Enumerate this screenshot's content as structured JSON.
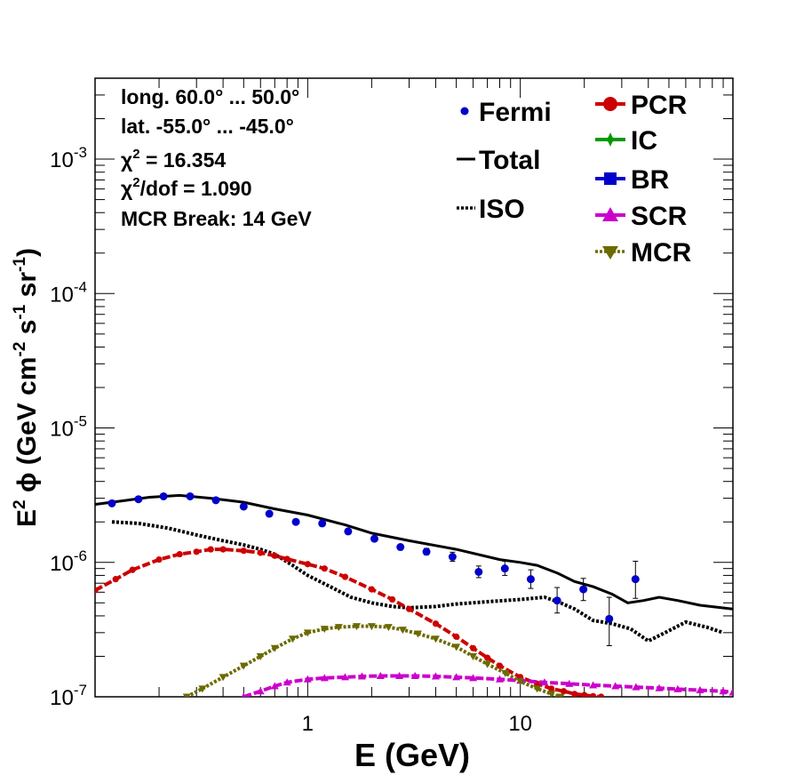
{
  "chart_data": {
    "type": "line",
    "xlabel": "E (GeV)",
    "ylabel": "E",
    "ylabel_sup": "2",
    "ylabel_rest": " ϕ (GeV cm",
    "ylabel_sup2": "-2",
    "ylabel_s": " s",
    "ylabel_sup3": "-1",
    "ylabel_sr": " sr",
    "ylabel_sup4": "-1",
    "ylabel_close": ")",
    "xscale": "log",
    "yscale": "log",
    "xlim": [
      0.1,
      100
    ],
    "ylim": [
      1e-07,
      0.004
    ],
    "x_ticks": [
      {
        "value": 1,
        "label": "1"
      },
      {
        "value": 10,
        "label": "10"
      }
    ],
    "y_ticks": [
      {
        "value": 1e-07,
        "base": "10",
        "exp": "-7"
      },
      {
        "value": 1e-06,
        "base": "10",
        "exp": "-6"
      },
      {
        "value": 1e-05,
        "base": "10",
        "exp": "-5"
      },
      {
        "value": 0.0001,
        "base": "10",
        "exp": "-4"
      },
      {
        "value": 0.001,
        "base": "10",
        "exp": "-3"
      }
    ],
    "annotations": {
      "long": "long. 60.0° ... 50.0°",
      "lat": "lat. -55.0° ... -45.0°",
      "chi2_sym": "χ",
      "chi2_sup": "2",
      "chi2_val": " = 16.354",
      "chidof_sym": "χ",
      "chidof_sup": "2",
      "chidof_val": "/dof = 1.090",
      "break": "MCR Break: 14 GeV"
    },
    "legend_placement": "top-right",
    "fermi": {
      "name": "Fermi",
      "color": "#0000cc",
      "points": [
        {
          "x": 0.12,
          "y": 2.75e-06,
          "err": [
            2.7e-06,
            2.8e-06
          ]
        },
        {
          "x": 0.16,
          "y": 2.95e-06,
          "err": [
            2.9e-06,
            3e-06
          ]
        },
        {
          "x": 0.21,
          "y": 3.1e-06,
          "err": [
            3.05e-06,
            3.15e-06
          ]
        },
        {
          "x": 0.28,
          "y": 3.1e-06,
          "err": [
            3.05e-06,
            3.15e-06
          ]
        },
        {
          "x": 0.37,
          "y": 2.9e-06,
          "err": [
            2.85e-06,
            2.95e-06
          ]
        },
        {
          "x": 0.5,
          "y": 2.6e-06,
          "err": [
            2.55e-06,
            2.65e-06
          ]
        },
        {
          "x": 0.66,
          "y": 2.3e-06,
          "err": [
            2.25e-06,
            2.35e-06
          ]
        },
        {
          "x": 0.88,
          "y": 2e-06,
          "err": [
            1.96e-06,
            2.04e-06
          ]
        },
        {
          "x": 1.17,
          "y": 1.95e-06,
          "err": [
            1.9e-06,
            2e-06
          ]
        },
        {
          "x": 1.55,
          "y": 1.7e-06,
          "err": [
            1.65e-06,
            1.75e-06
          ]
        },
        {
          "x": 2.06,
          "y": 1.5e-06,
          "err": [
            1.45e-06,
            1.55e-06
          ]
        },
        {
          "x": 2.73,
          "y": 1.3e-06,
          "err": [
            1.25e-06,
            1.35e-06
          ]
        },
        {
          "x": 3.62,
          "y": 1.2e-06,
          "err": [
            1.14e-06,
            1.27e-06
          ]
        },
        {
          "x": 4.8,
          "y": 1.1e-06,
          "err": [
            1.02e-06,
            1.19e-06
          ]
        },
        {
          "x": 6.37,
          "y": 8.5e-07,
          "err": [
            7.7e-07,
            9.4e-07
          ]
        },
        {
          "x": 8.46,
          "y": 9e-07,
          "err": [
            8e-07,
            1.02e-06
          ]
        },
        {
          "x": 11.2,
          "y": 7.5e-07,
          "err": [
            6.4e-07,
            8.8e-07
          ]
        },
        {
          "x": 14.9,
          "y": 5.2e-07,
          "err": [
            4.2e-07,
            6.5e-07
          ]
        },
        {
          "x": 19.8,
          "y": 6.3e-07,
          "err": [
            5.2e-07,
            7.6e-07
          ]
        },
        {
          "x": 26.2,
          "y": 3.8e-07,
          "err": [
            2.4e-07,
            5.5e-07
          ]
        },
        {
          "x": 34.8,
          "y": 7.5e-07,
          "err": [
            5.4e-07,
            1.02e-06
          ]
        }
      ]
    },
    "series": [
      {
        "name": "Total",
        "color": "#000000",
        "style": "solid",
        "x": [
          0.1,
          0.13,
          0.18,
          0.25,
          0.35,
          0.5,
          0.7,
          1.0,
          1.5,
          2.0,
          3.0,
          5.0,
          8.0,
          10.0,
          12.0,
          15.0,
          18.0,
          22.0,
          27.0,
          32.0,
          38.0,
          45.0,
          55.0,
          70.0,
          100.0
        ],
        "y": [
          2.7e-06,
          2.85e-06,
          3.05e-06,
          3.15e-06,
          3e-06,
          2.8e-06,
          2.5e-06,
          2.25e-06,
          1.9e-06,
          1.65e-06,
          1.45e-06,
          1.25e-06,
          1.05e-06,
          1e-06,
          9.5e-07,
          8.3e-07,
          7.2e-07,
          6.6e-07,
          5.8e-07,
          5e-07,
          5.2e-07,
          5.5e-07,
          5.2e-07,
          4.8e-07,
          4.5e-07
        ]
      },
      {
        "name": "ISO",
        "color": "#000000",
        "style": "dotted",
        "x": [
          0.12,
          0.16,
          0.22,
          0.3,
          0.4,
          0.5,
          0.6,
          0.7,
          0.85,
          1.0,
          1.3,
          1.6,
          2.0,
          2.5,
          3.0,
          4.0,
          5.0,
          7.0,
          10.0,
          13.0,
          15.0,
          18.0,
          22.0,
          27.0,
          33.0,
          40.0,
          48.0,
          60.0,
          75.0,
          90.0
        ],
        "y": [
          2e-06,
          1.95e-06,
          1.8e-06,
          1.6e-06,
          1.45e-06,
          1.35e-06,
          1.25e-06,
          1.15e-06,
          9.5e-07,
          8e-07,
          6.5e-07,
          5.5e-07,
          5e-07,
          4.7e-07,
          4.6e-07,
          4.7e-07,
          4.9e-07,
          5.1e-07,
          5.3e-07,
          5.5e-07,
          5.1e-07,
          4.5e-07,
          3.7e-07,
          3.5e-07,
          3.2e-07,
          2.6e-07,
          3e-07,
          3.6e-07,
          3.3e-07,
          3e-07
        ]
      },
      {
        "name": "PCR",
        "color": "#cc0000",
        "style": "dashed",
        "marker": "circle",
        "x": [
          0.1,
          0.125,
          0.15,
          0.2,
          0.25,
          0.3,
          0.35,
          0.4,
          0.5,
          0.6,
          0.7,
          0.8,
          1.0,
          1.2,
          1.5,
          2.0,
          2.5,
          3.0,
          4.0,
          5.0,
          6.0,
          7.0,
          8.0,
          10.0,
          12.0,
          14.0,
          16.0,
          18.0,
          20.0,
          22.0,
          24.0
        ],
        "y": [
          6.2e-07,
          7.5e-07,
          8.8e-07,
          1.05e-06,
          1.15e-06,
          1.2e-06,
          1.25e-06,
          1.25e-06,
          1.22e-06,
          1.18e-06,
          1.12e-06,
          1.06e-06,
          9.7e-07,
          9e-07,
          7.8e-07,
          6.3e-07,
          5.3e-07,
          4.5e-07,
          3.5e-07,
          2.8e-07,
          2.3e-07,
          1.95e-07,
          1.7e-07,
          1.4e-07,
          1.25e-07,
          1.15e-07,
          1.1e-07,
          1.05e-07,
          1.03e-07,
          1.01e-07,
          1e-07
        ]
      },
      {
        "name": "IC",
        "color": "#009900",
        "style": "solid",
        "marker": "star",
        "x": [],
        "y": []
      },
      {
        "name": "BR",
        "color": "#0000cc",
        "style": "solid",
        "marker": "square",
        "x": [],
        "y": []
      },
      {
        "name": "SCR",
        "color": "#cc00cc",
        "style": "dashed",
        "marker": "triangle-up",
        "x": [
          0.5,
          0.6,
          0.7,
          0.8,
          1.0,
          1.2,
          1.5,
          1.8,
          2.2,
          2.7,
          3.2,
          4.0,
          5.0,
          6.0,
          8.0,
          10.0,
          13.0,
          17.0,
          22.0,
          28.0,
          35.0,
          45.0,
          55.0,
          70.0,
          90.0,
          100.0
        ],
        "y": [
          1e-07,
          1.1e-07,
          1.2e-07,
          1.28e-07,
          1.35e-07,
          1.38e-07,
          1.4e-07,
          1.42e-07,
          1.43e-07,
          1.43e-07,
          1.43e-07,
          1.42e-07,
          1.4e-07,
          1.38e-07,
          1.35e-07,
          1.32e-07,
          1.28e-07,
          1.25e-07,
          1.22e-07,
          1.2e-07,
          1.18e-07,
          1.16e-07,
          1.14e-07,
          1.12e-07,
          1.1e-07,
          1.08e-07
        ]
      },
      {
        "name": "MCR",
        "color": "#6b6b00",
        "style": "dotted",
        "marker": "triangle-down",
        "x": [
          0.27,
          0.32,
          0.4,
          0.5,
          0.6,
          0.7,
          0.85,
          1.0,
          1.2,
          1.4,
          1.7,
          2.0,
          2.4,
          2.8,
          3.3,
          4.0,
          5.0,
          6.0,
          7.0,
          8.5,
          10.0,
          12.0,
          14.0,
          15.5
        ],
        "y": [
          1e-07,
          1.15e-07,
          1.4e-07,
          1.7e-07,
          2e-07,
          2.3e-07,
          2.7e-07,
          3e-07,
          3.2e-07,
          3.3e-07,
          3.35e-07,
          3.35e-07,
          3.3e-07,
          3.15e-07,
          2.95e-07,
          2.7e-07,
          2.35e-07,
          2e-07,
          1.75e-07,
          1.5e-07,
          1.3e-07,
          1.15e-07,
          1.05e-07,
          1e-07
        ]
      }
    ]
  }
}
